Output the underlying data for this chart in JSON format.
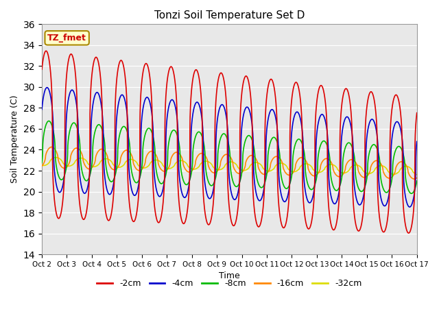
{
  "title": "Tonzi Soil Temperature Set D",
  "xlabel": "Time",
  "ylabel": "Soil Temperature (C)",
  "ylim": [
    14,
    36
  ],
  "yticks": [
    14,
    16,
    18,
    20,
    22,
    24,
    26,
    28,
    30,
    32,
    34,
    36
  ],
  "xtick_labels": [
    "Oct 2",
    "Oct 3",
    "Oct 4",
    "Oct 5",
    "Oct 6",
    "Oct 7",
    "Oct 8",
    "Oct 9",
    "Oct 10",
    "Oct 11",
    "Oct 12",
    "Oct 13",
    "Oct 14",
    "Oct 15",
    "Oct 16",
    "Oct 17"
  ],
  "annotation_label": "TZ_fmet",
  "annotation_color": "#cc0000",
  "annotation_bg": "#ffffcc",
  "annotation_border": "#aa8800",
  "colors": {
    "-2cm": "#dd0000",
    "-4cm": "#0000cc",
    "-8cm": "#00bb00",
    "-16cm": "#ff8800",
    "-32cm": "#dddd00"
  },
  "n_days": 15,
  "points_per_day": 240,
  "background_color": "#e8e8e8",
  "figure_color": "#ffffff",
  "linewidth": 1.2
}
